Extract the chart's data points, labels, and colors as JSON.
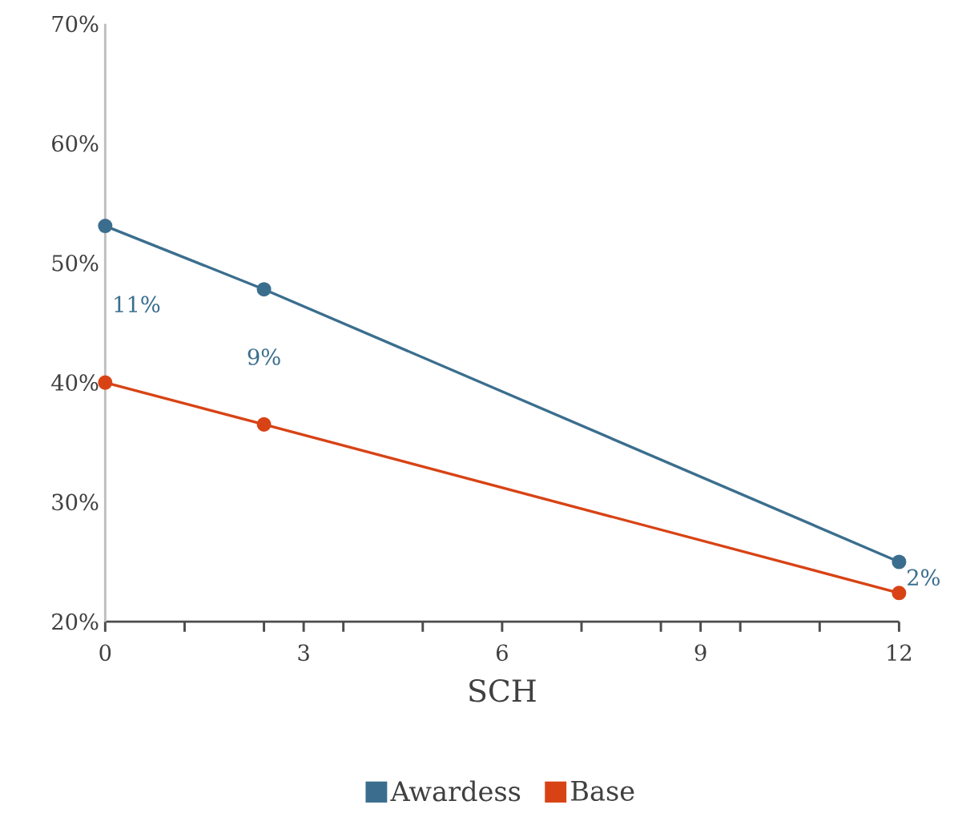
{
  "chart_data": {
    "type": "line",
    "xlabel": "SCH",
    "x": [
      0,
      2.4,
      12
    ],
    "series": [
      {
        "name": "Awardess",
        "color": "#3b6e8e",
        "values": [
          53.1,
          47.8,
          25.0
        ]
      },
      {
        "name": "Base",
        "color": "#d84315",
        "values": [
          40.0,
          36.5,
          22.4
        ]
      }
    ],
    "xlim": [
      0,
      12
    ],
    "xticks": [
      0,
      {
        "value": 1.2,
        "label": null
      },
      {
        "value": 2.4,
        "label": null
      },
      3,
      {
        "value": 3.6,
        "label": null
      },
      {
        "value": 4.8,
        "label": null
      },
      6,
      {
        "value": 7.2,
        "label": null
      },
      {
        "value": 8.4,
        "label": null
      },
      9,
      {
        "value": 9.6,
        "label": null
      },
      {
        "value": 10.8,
        "label": null
      },
      12
    ],
    "ylim": [
      20,
      70
    ],
    "yticks": [
      {
        "value": 20,
        "label": "20%"
      },
      {
        "value": 30,
        "label": "30%"
      },
      {
        "value": 40,
        "label": "40%"
      },
      {
        "value": 50,
        "label": "50%"
      },
      {
        "value": 60,
        "label": "60%"
      },
      {
        "value": 70,
        "label": "70%"
      }
    ],
    "annotations": [
      "11%",
      "9%",
      "2%"
    ],
    "grid": false,
    "legend": "bottom",
    "marker": "circle",
    "line_style": "solid"
  }
}
